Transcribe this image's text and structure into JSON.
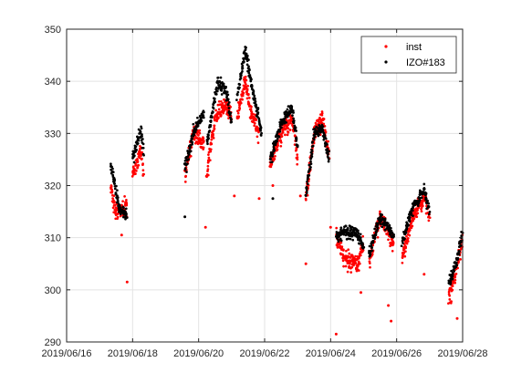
{
  "chart_data": {
    "type": "scatter",
    "title": "",
    "xlabel": "",
    "ylabel": "",
    "xlim": [
      "2019-06-16",
      "2019-06-28"
    ],
    "ylim": [
      290,
      350
    ],
    "x_ticks": [
      "2019/06/16",
      "2019/06/18",
      "2019/06/20",
      "2019/06/22",
      "2019/06/24",
      "2019/06/26",
      "2019/06/28"
    ],
    "y_ticks": [
      290,
      300,
      310,
      320,
      330,
      340,
      350
    ],
    "grid": true,
    "legend": {
      "placement": "top-right"
    },
    "series": [
      {
        "name": "inst",
        "color": "#ff0000",
        "segments": [
          {
            "x": [
              "2019-06-17T08:00",
              "2019-06-17T12:00",
              "2019-06-17T20:00"
            ],
            "y": [
              320,
              315,
              316
            ]
          },
          {
            "x": [
              "2019-06-18T00:00",
              "2019-06-18T06:00",
              "2019-06-18T08:00"
            ],
            "y": [
              322,
              327,
              322
            ]
          },
          {
            "x": [
              "2019-06-19T14:00",
              "2019-06-19T20:00",
              "2019-06-20T04:00"
            ],
            "y": [
              322,
              330,
              328
            ]
          },
          {
            "x": [
              "2019-06-20T06:00",
              "2019-06-20T12:00",
              "2019-06-20T20:00",
              "2019-06-21T00:00"
            ],
            "y": [
              322,
              333,
              336,
              333
            ]
          },
          {
            "x": [
              "2019-06-21T04:00",
              "2019-06-21T10:00",
              "2019-06-21T14:00",
              "2019-06-21T20:00"
            ],
            "y": [
              333,
              340,
              334,
              330
            ]
          },
          {
            "x": [
              "2019-06-22T04:00",
              "2019-06-22T12:00",
              "2019-06-22T20:00",
              "2019-06-23T00:00"
            ],
            "y": [
              324,
              330,
              333,
              325
            ]
          },
          {
            "x": [
              "2019-06-23T06:00",
              "2019-06-23T12:00",
              "2019-06-23T18:00",
              "2019-06-23T23:00"
            ],
            "y": [
              317,
              330,
              333,
              325
            ]
          },
          {
            "x": [
              "2019-06-24T04:00",
              "2019-06-24T10:00",
              "2019-06-24T20:00",
              "2019-06-25T00:00"
            ],
            "y": [
              310,
              306,
              305,
              309
            ]
          },
          {
            "x": [
              "2019-06-25T04:00",
              "2019-06-25T12:00",
              "2019-06-25T18:00",
              "2019-06-25T22:00"
            ],
            "y": [
              305,
              314,
              311,
              309
            ]
          },
          {
            "x": [
              "2019-06-26T04:00",
              "2019-06-26T12:00",
              "2019-06-26T20:00",
              "2019-06-27T00:00"
            ],
            "y": [
              306,
              314,
              318,
              314
            ]
          },
          {
            "x": [
              "2019-06-27T14:00",
              "2019-06-27T20:00",
              "2019-06-28T00:00"
            ],
            "y": [
              298,
              305,
              310
            ]
          }
        ],
        "outliers": [
          {
            "x": "2019-06-17T16:00",
            "y": 310.5
          },
          {
            "x": "2019-06-17T20:00",
            "y": 301.5
          },
          {
            "x": "2019-06-20T05:00",
            "y": 312
          },
          {
            "x": "2019-06-21T02:00",
            "y": 318
          },
          {
            "x": "2019-06-21T20:00",
            "y": 317.5
          },
          {
            "x": "2019-06-22T06:00",
            "y": 320
          },
          {
            "x": "2019-06-23T02:00",
            "y": 318
          },
          {
            "x": "2019-06-23T06:00",
            "y": 305
          },
          {
            "x": "2019-06-24T00:00",
            "y": 312
          },
          {
            "x": "2019-06-24T04:00",
            "y": 291.5
          },
          {
            "x": "2019-06-24T22:00",
            "y": 299.5
          },
          {
            "x": "2019-06-25T18:00",
            "y": 297
          },
          {
            "x": "2019-06-25T20:00",
            "y": 294
          },
          {
            "x": "2019-06-26T20:00",
            "y": 303
          },
          {
            "x": "2019-06-27T20:00",
            "y": 294.5
          }
        ]
      },
      {
        "name": "IZO#183",
        "color": "#000000",
        "segments": [
          {
            "x": [
              "2019-06-17T08:00",
              "2019-06-17T14:00",
              "2019-06-17T20:00"
            ],
            "y": [
              324,
              316,
              314
            ]
          },
          {
            "x": [
              "2019-06-18T00:00",
              "2019-06-18T06:00",
              "2019-06-18T08:00"
            ],
            "y": [
              325,
              331,
              326
            ]
          },
          {
            "x": [
              "2019-06-19T14:00",
              "2019-06-19T20:00",
              "2019-06-20T04:00"
            ],
            "y": [
              323,
              330,
              334
            ]
          },
          {
            "x": [
              "2019-06-20T06:00",
              "2019-06-20T14:00",
              "2019-06-20T20:00",
              "2019-06-21T00:00"
            ],
            "y": [
              328,
              340,
              338,
              332
            ]
          },
          {
            "x": [
              "2019-06-21T04:00",
              "2019-06-21T10:00",
              "2019-06-21T14:00",
              "2019-06-21T22:00"
            ],
            "y": [
              337,
              346,
              340,
              330
            ]
          },
          {
            "x": [
              "2019-06-22T04:00",
              "2019-06-22T12:00",
              "2019-06-22T20:00",
              "2019-06-23T00:00"
            ],
            "y": [
              325,
              332,
              335,
              327
            ]
          },
          {
            "x": [
              "2019-06-23T06:00",
              "2019-06-23T12:00",
              "2019-06-23T18:00",
              "2019-06-23T23:00"
            ],
            "y": [
              318,
              330,
              331,
              325
            ]
          },
          {
            "x": [
              "2019-06-24T04:00",
              "2019-06-24T10:00",
              "2019-06-24T20:00",
              "2019-06-25T00:00"
            ],
            "y": [
              310,
              311,
              311,
              308
            ]
          },
          {
            "x": [
              "2019-06-25T04:00",
              "2019-06-25T12:00",
              "2019-06-25T18:00",
              "2019-06-25T22:00"
            ],
            "y": [
              307,
              314,
              312,
              310
            ]
          },
          {
            "x": [
              "2019-06-26T04:00",
              "2019-06-26T12:00",
              "2019-06-26T20:00",
              "2019-06-27T00:00"
            ],
            "y": [
              309,
              316,
              319,
              315
            ]
          },
          {
            "x": [
              "2019-06-27T14:00",
              "2019-06-27T20:00",
              "2019-06-28T00:00"
            ],
            "y": [
              301,
              306,
              311
            ]
          }
        ],
        "outliers": [
          {
            "x": "2019-06-19T14:00",
            "y": 314
          },
          {
            "x": "2019-06-22T06:00",
            "y": 317.5
          }
        ]
      }
    ]
  }
}
